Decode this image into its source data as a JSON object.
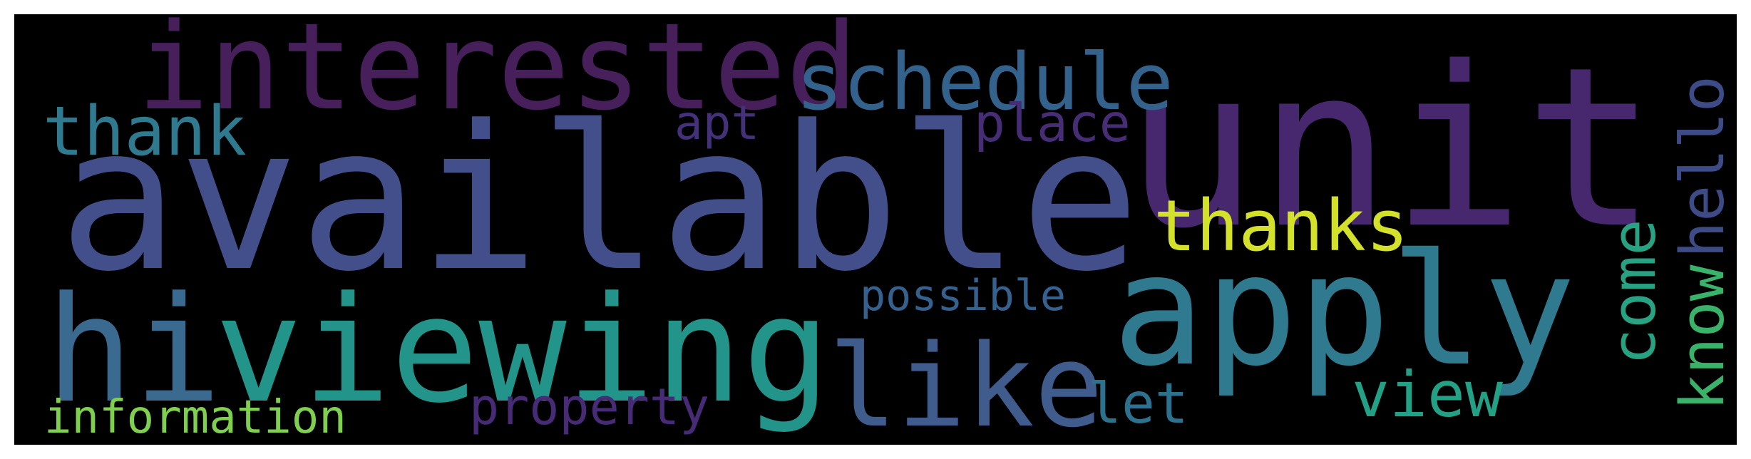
{
  "words": [
    {
      "key": "available",
      "text": "available",
      "color": "#424f8b"
    },
    {
      "key": "unit",
      "text": "unit",
      "color": "#47286e"
    },
    {
      "key": "apply",
      "text": "apply",
      "color": "#2f7a8e"
    },
    {
      "key": "hi",
      "text": "hi",
      "color": "#3a6a8f"
    },
    {
      "key": "viewing",
      "text": "viewing",
      "color": "#22948a"
    },
    {
      "key": "interested",
      "text": "interested",
      "color": "#471f5b"
    },
    {
      "key": "like",
      "text": "like",
      "color": "#3f5c8d"
    },
    {
      "key": "schedule",
      "text": "schedule",
      "color": "#33628d"
    },
    {
      "key": "thanks",
      "text": "thanks",
      "color": "#d3e12a"
    },
    {
      "key": "thank",
      "text": "thank",
      "color": "#2f7a8e"
    },
    {
      "key": "come",
      "text": "come",
      "color": "#27a383"
    },
    {
      "key": "hello",
      "text": "hello",
      "color": "#3d4b87"
    },
    {
      "key": "know",
      "text": "know",
      "color": "#3ab36a"
    },
    {
      "key": "view",
      "text": "view",
      "color": "#23a187"
    },
    {
      "key": "let",
      "text": "let",
      "color": "#2c718e"
    },
    {
      "key": "possible",
      "text": "possible",
      "color": "#35618e"
    },
    {
      "key": "place",
      "text": "place",
      "color": "#472d75"
    },
    {
      "key": "apt",
      "text": "apt",
      "color": "#45307a"
    },
    {
      "key": "property",
      "text": "property",
      "color": "#472b76"
    },
    {
      "key": "information",
      "text": "information",
      "color": "#7fd04e"
    }
  ]
}
